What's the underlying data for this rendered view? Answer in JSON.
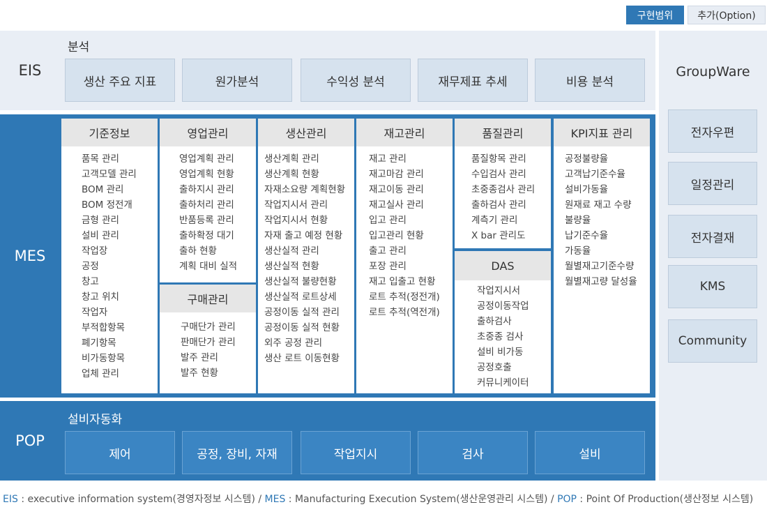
{
  "legend": {
    "implemented": "구현범위",
    "option": "추가(Option)"
  },
  "eis": {
    "label": "EIS",
    "subtitle": "분석",
    "items": [
      "생산 주요 지표",
      "원가분석",
      "수익성 분석",
      "재무제표 추세",
      "비용 분석"
    ]
  },
  "mes": {
    "label": "MES",
    "columns": [
      {
        "title": "기준정보",
        "items": [
          "품목 관리",
          "고객모델 관리",
          "BOM 관리",
          "BOM 정전개",
          "금형 관리",
          "설비 관리",
          "작업장",
          "공정",
          "창고",
          "창고 위치",
          "작업자",
          "부적합항목",
          "폐기항목",
          "비가동항목",
          "업체 관리"
        ]
      },
      {
        "title": "영업관리",
        "items": [
          "영업계획 관리",
          "영업계획 현황",
          "출하지시 관리",
          "출하처리 관리",
          "반품등록 관리",
          "출하확정 대기",
          "출하 현황",
          "계획 대비 실적"
        ]
      },
      {
        "title": "구매관리",
        "items": [
          "구매단가 관리",
          "판매단가 관리",
          "발주 관리",
          "발주 현황"
        ]
      },
      {
        "title": "생산관리",
        "items": [
          "생산계획 관리",
          "생산계획 현황",
          "자재소요량 계획현황",
          "작업지시서 관리",
          "작업지시서 현황",
          "자재 출고 예정 현황",
          "생산실적 관리",
          "생산실적 현황",
          "생산실적 불량현황",
          "생산실적 로트상세",
          "공정이동 실적 관리",
          "공정이동 실적 현황",
          "외주 공정 관리",
          "생산 로트 이동현황"
        ]
      },
      {
        "title": "재고관리",
        "items": [
          "재고 관리",
          "재고마감 관리",
          "재고이동 관리",
          "재고실사 관리",
          "입고 관리",
          "입고관리 현황",
          "출고 관리",
          "포장 관리",
          "재고 입출고 현황",
          "로트 추적(정전개)",
          "로트 추적(역전개)"
        ]
      },
      {
        "title": "품질관리",
        "items": [
          "품질항목 관리",
          "수입검사 관리",
          "초중종검사 관리",
          "출하검사 관리",
          "계측기 관리",
          "X bar 관리도"
        ]
      },
      {
        "title": "DAS",
        "items": [
          "작업지시서",
          "공정이동작업",
          "출하검사",
          "초중종 검사",
          "설비 비가동",
          "공정호출",
          "커뮤니케이터"
        ]
      },
      {
        "title": "KPI지표 관리",
        "items": [
          "공정불량율",
          "고객납기준수율",
          "설비가동율",
          "원재료 재고 수량",
          "불량율",
          "납기준수율",
          "가동율",
          "월별재고기준수량",
          "월별재고량 달성율"
        ]
      }
    ]
  },
  "pop": {
    "label": "POP",
    "subtitle": "설비자동화",
    "items": [
      "제어",
      "공정, 장비, 자재",
      "작업지시",
      "검사",
      "설비"
    ]
  },
  "groupware": {
    "title": "GroupWare",
    "items": [
      "전자우편",
      "일정관리",
      "전자결재",
      "KMS",
      "Community"
    ]
  },
  "footer": {
    "eis_key": "EIS",
    "eis_desc": " : executive information system(경영자정보 시스템) / ",
    "mes_key": "MES",
    "mes_desc": " :  Manufacturing Execution System(생산운영관리 시스템) / ",
    "pop_key": "POP",
    "pop_desc": " : Point Of Production(생산정보 시스템)"
  },
  "colors": {
    "accent": "#2f78b5",
    "light_panel": "#e9eef5",
    "grey_box": "#d6e2ee"
  }
}
